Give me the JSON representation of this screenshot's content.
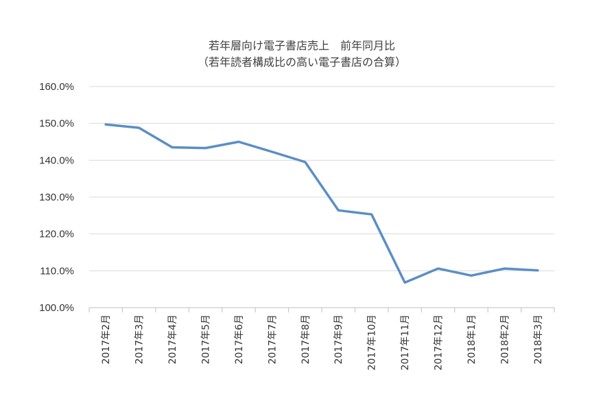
{
  "chart_data": {
    "type": "line",
    "title": "若年層向け電子書店売上　前年同月比",
    "subtitle": "（若年読者構成比の高い電子書店の合算）",
    "categories": [
      "2017年2月",
      "2017年3月",
      "2017年4月",
      "2017年5月",
      "2017年6月",
      "2017年7月",
      "2017年8月",
      "2017年9月",
      "2017年10月",
      "2017年11月",
      "2017年12月",
      "2018年1月",
      "2018年2月",
      "2018年3月"
    ],
    "series": [
      {
        "values": [
          149.7,
          148.8,
          143.5,
          143.3,
          145.0,
          142.3,
          139.5,
          126.4,
          125.3,
          106.8,
          110.6,
          108.7,
          110.6,
          110.1
        ]
      }
    ],
    "ylim": [
      100,
      160
    ],
    "yticks": [
      100,
      110,
      120,
      130,
      140,
      150,
      160
    ],
    "ytick_labels": [
      "100.0%",
      "110.0%",
      "120.0%",
      "130.0%",
      "140.0%",
      "150.0%",
      "160.0%"
    ],
    "grid": true,
    "legend": false,
    "line_color": "#5b8ec4",
    "grid_color": "#d9d9d9"
  }
}
